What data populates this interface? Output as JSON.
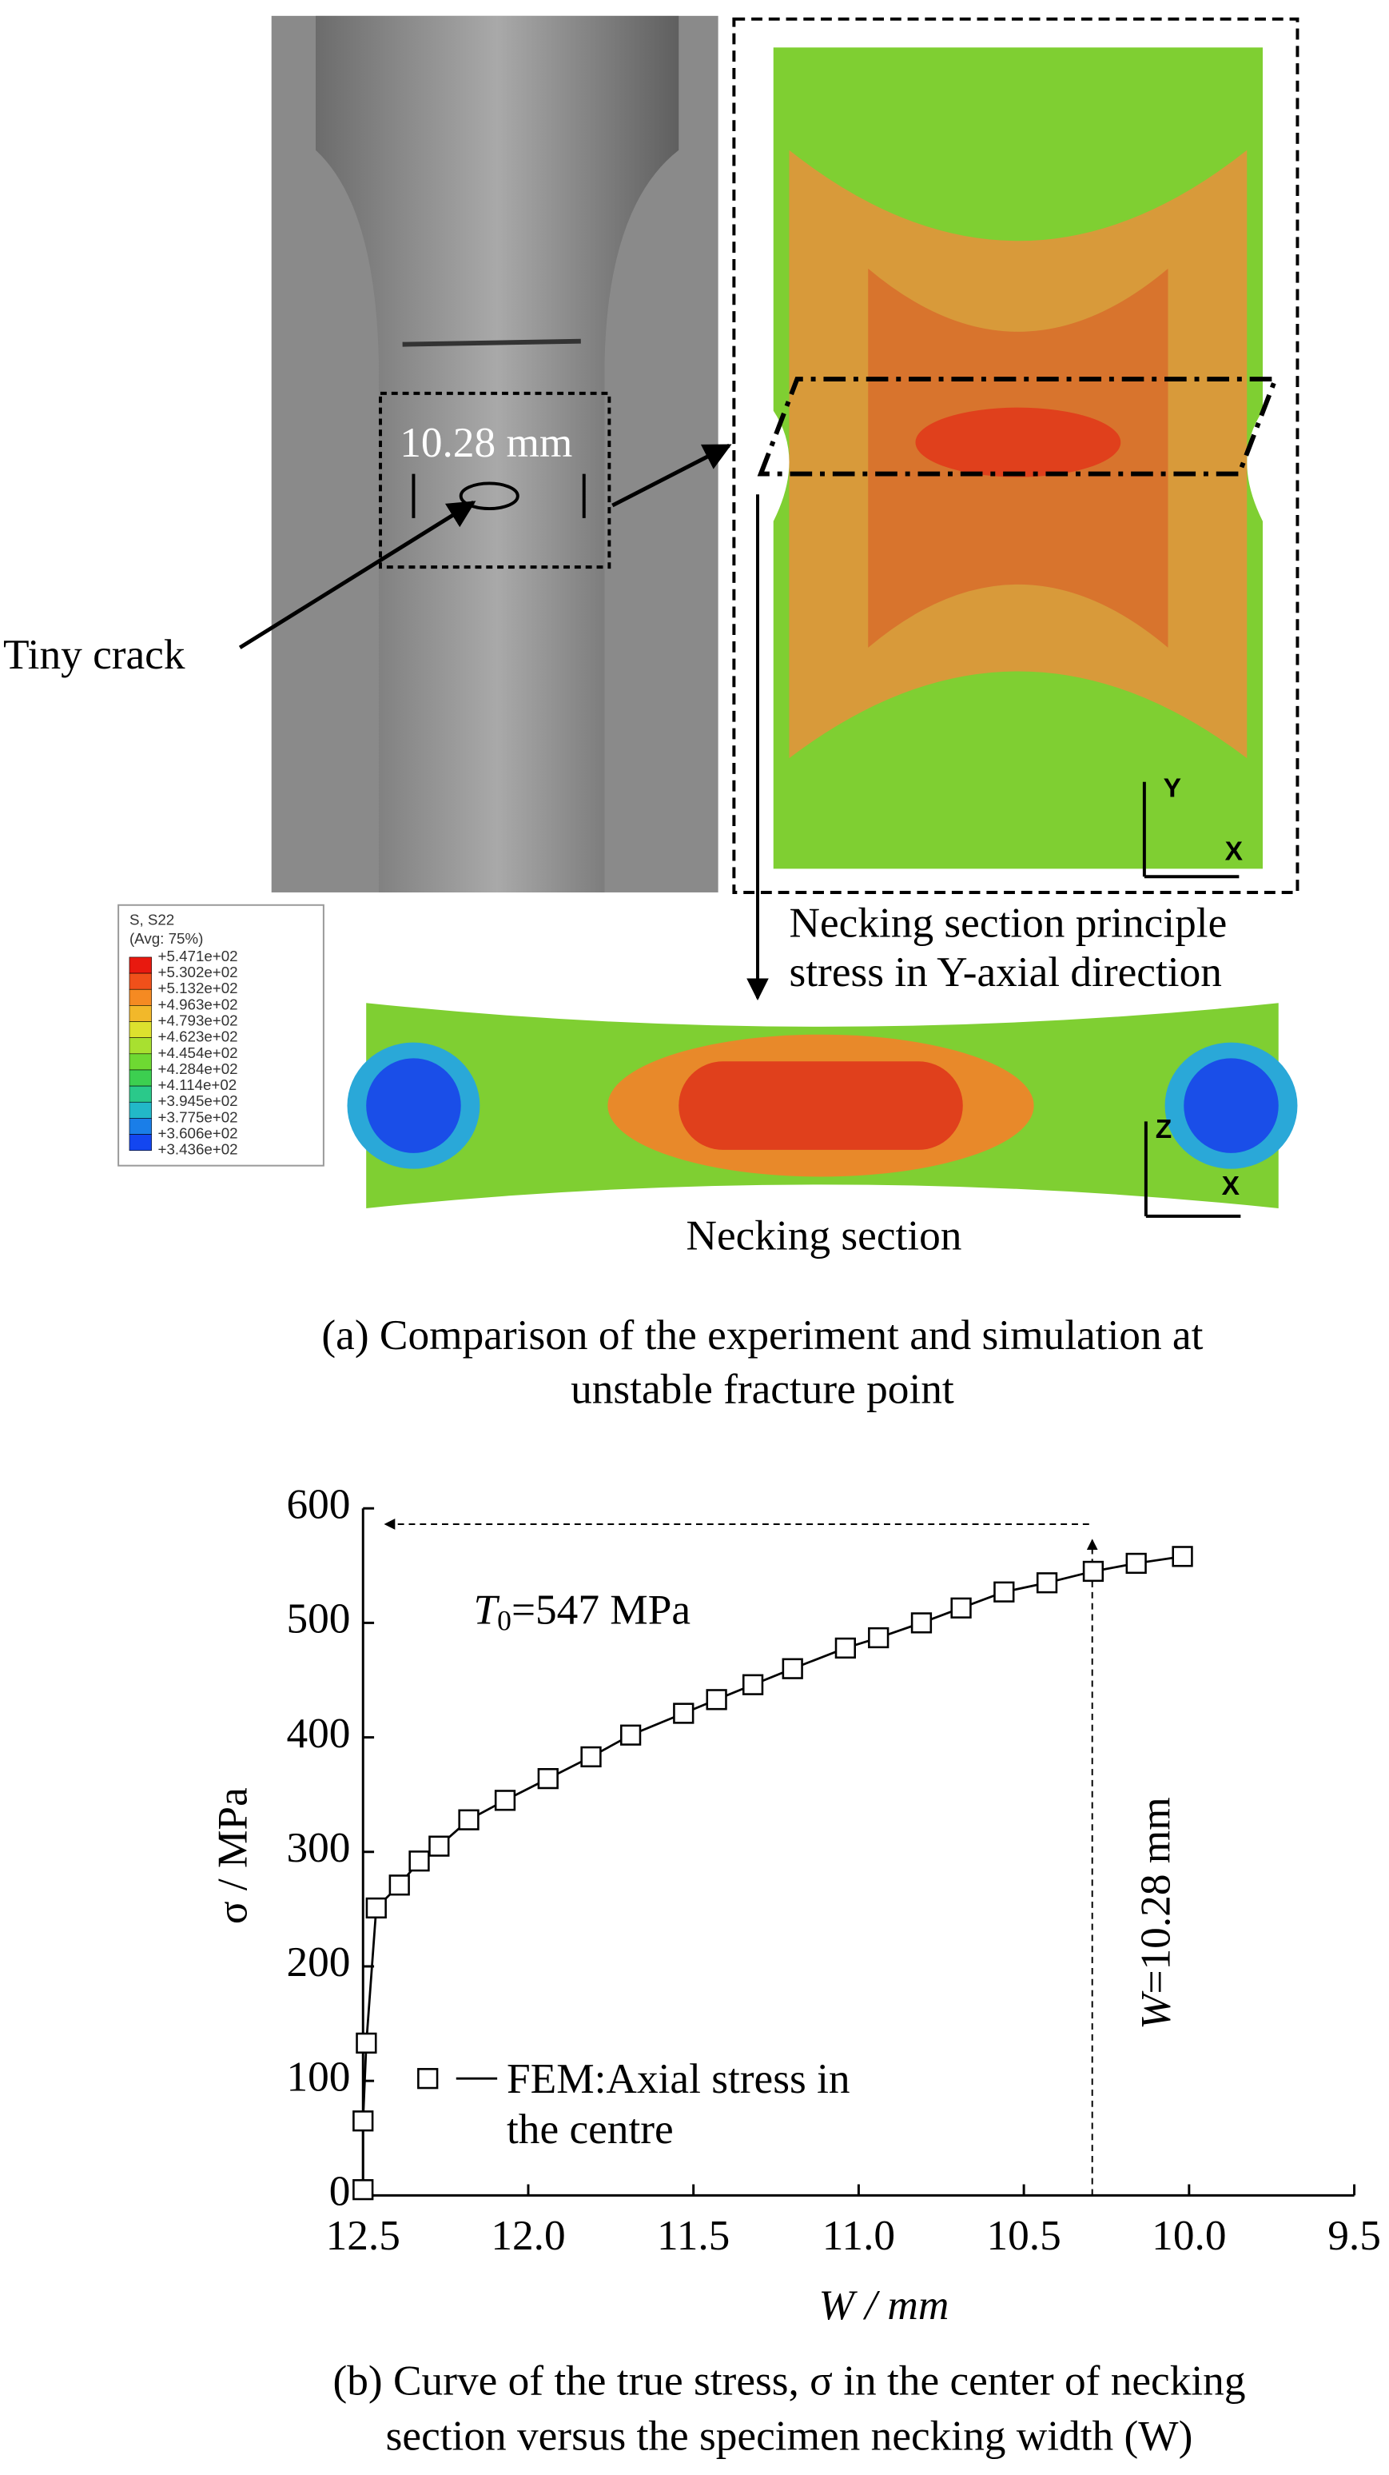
{
  "figure_a": {
    "dimension": "10.28 mm",
    "crack_label": "Tiny crack",
    "stress_label": [
      "Necking section principle",
      "stress in Y-axial direction"
    ],
    "section_label": "Necking section",
    "axes_top": [
      "Y",
      "X"
    ],
    "axes_bottom": [
      "Z",
      "X"
    ],
    "legend": {
      "title": "S, S22",
      "subtitle": "(Avg: 75%)",
      "values": [
        "+5.471e+02",
        "+5.302e+02",
        "+5.132e+02",
        "+4.963e+02",
        "+4.793e+02",
        "+4.623e+02",
        "+4.454e+02",
        "+4.284e+02",
        "+4.114e+02",
        "+3.945e+02",
        "+3.775e+02",
        "+3.606e+02",
        "+3.436e+02"
      ],
      "colors": [
        "#e8190f",
        "#f0501a",
        "#f58a22",
        "#f2b82a",
        "#dde12e",
        "#a8e030",
        "#6ed932",
        "#3ccf50",
        "#2ac98a",
        "#22b8c8",
        "#1a7ee8",
        "#1346f0"
      ]
    },
    "caption": [
      "(a)  Comparison of the experiment and simulation at",
      "unstable fracture point"
    ]
  },
  "chart_data": {
    "type": "line",
    "xlabel": "W / mm",
    "ylabel": "σ / MPa",
    "x": [
      12.5,
      12.5,
      12.49,
      12.46,
      12.39,
      12.33,
      12.27,
      12.18,
      12.07,
      11.94,
      11.81,
      11.69,
      11.53,
      11.43,
      11.32,
      11.2,
      11.04,
      10.94,
      10.81,
      10.69,
      10.56,
      10.43,
      10.29,
      10.16,
      10.02
    ],
    "series": [
      {
        "name": "FEM:Axial stress in the centre",
        "color": "#000000",
        "values": [
          5,
          65,
          133,
          251,
          271,
          292,
          305,
          328,
          345,
          364,
          383,
          402,
          421,
          433,
          446,
          460,
          478,
          487,
          500,
          513,
          527,
          535,
          545,
          552,
          558
        ]
      }
    ],
    "xlim": [
      12.5,
      9.5
    ],
    "xticks": [
      12.5,
      {
        "value": 12,
        "label": "12.0"
      },
      11.5,
      {
        "value": 11,
        "label": "11.0"
      },
      10.5,
      {
        "value": 10,
        "label": "10.0"
      },
      9.5
    ],
    "ylim": [
      0,
      600
    ],
    "yticks": [
      0,
      100,
      200,
      300,
      400,
      500,
      600
    ],
    "legend": "lower left",
    "annotations": [
      {
        "italic": "T",
        "sub": "0",
        "text": "=547 MPa"
      },
      {
        "italic": "W",
        "text": "=10.28 mm"
      }
    ],
    "caption": [
      "(b)  Curve of the true stress, σ in the center of necking",
      "section versus the specimen necking width (W)"
    ]
  }
}
